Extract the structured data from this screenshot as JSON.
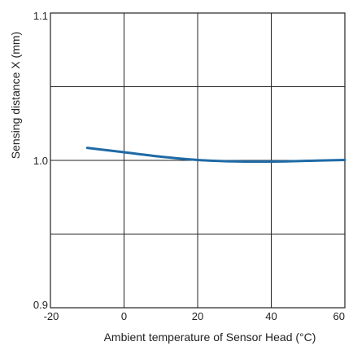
{
  "chart_data": {
    "type": "line",
    "xlabel": "Ambient temperature of Sensor Head (°C)",
    "ylabel": "Sensing distance X (mm)",
    "xlim": [
      -20,
      60
    ],
    "ylim": [
      0.9,
      1.1
    ],
    "x_ticks": [
      {
        "value": -20,
        "label": "-20"
      },
      {
        "value": 0,
        "label": "0"
      },
      {
        "value": 20,
        "label": "20"
      },
      {
        "value": 40,
        "label": "40"
      },
      {
        "value": 60,
        "label": "60"
      }
    ],
    "y_ticks": [
      {
        "value": 0.9,
        "label": "0.9"
      },
      {
        "value": 1.0,
        "label": "1.0"
      },
      {
        "value": 1.1,
        "label": "1.1"
      }
    ],
    "x_grid": [
      0,
      20,
      40
    ],
    "y_grid": [
      0.95,
      1.0,
      1.05
    ],
    "grid": true,
    "series": [
      {
        "color": "#1f6aa5",
        "x": [
          -10,
          0,
          10,
          20,
          30,
          40,
          50,
          60
        ],
        "y": [
          1.0085,
          1.0055,
          1.0025,
          1.0003,
          0.9993,
          0.9992,
          0.9997,
          1.0003
        ]
      }
    ]
  }
}
